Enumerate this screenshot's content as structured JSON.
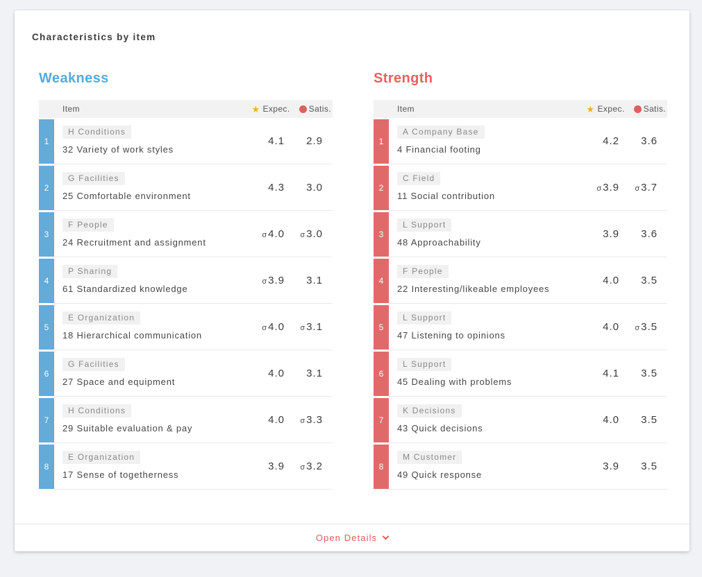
{
  "page": {
    "title": "Characteristics by item"
  },
  "sigma_symbol": "σ",
  "table_header": {
    "item_label": "Item",
    "expec_label": "Expec.",
    "satis_label": "Satis.",
    "expec_icon": "star-icon",
    "satis_icon": "dot-icon",
    "star_glyph": "★"
  },
  "colors": {
    "weakness_heading": "#55aadc",
    "weakness_badge": "#63abd8",
    "strength_heading": "#ec5f5f",
    "strength_badge": "#e06a6a",
    "star": "#f0b11e",
    "satis_dot": "#e05e5e",
    "details_link": "#e05c5c"
  },
  "weakness": {
    "heading": "Weakness",
    "rows": [
      {
        "rank": "1",
        "tag": "H Conditions",
        "label": "32 Variety of work styles",
        "expec": "4.1",
        "expec_sigma": false,
        "satis": "2.9",
        "satis_sigma": false
      },
      {
        "rank": "2",
        "tag": "G Facilities",
        "label": "25 Comfortable environment",
        "expec": "4.3",
        "expec_sigma": false,
        "satis": "3.0",
        "satis_sigma": false
      },
      {
        "rank": "3",
        "tag": "F People",
        "label": "24 Recruitment and assignment",
        "expec": "4.0",
        "expec_sigma": true,
        "satis": "3.0",
        "satis_sigma": true
      },
      {
        "rank": "4",
        "tag": "P Sharing",
        "label": "61 Standardized knowledge",
        "expec": "3.9",
        "expec_sigma": true,
        "satis": "3.1",
        "satis_sigma": false
      },
      {
        "rank": "5",
        "tag": "E Organization",
        "label": "18 Hierarchical communication",
        "expec": "4.0",
        "expec_sigma": true,
        "satis": "3.1",
        "satis_sigma": true
      },
      {
        "rank": "6",
        "tag": "G Facilities",
        "label": "27 Space and equipment",
        "expec": "4.0",
        "expec_sigma": false,
        "satis": "3.1",
        "satis_sigma": false
      },
      {
        "rank": "7",
        "tag": "H Conditions",
        "label": "29 Suitable evaluation & pay",
        "expec": "4.0",
        "expec_sigma": false,
        "satis": "3.3",
        "satis_sigma": true
      },
      {
        "rank": "8",
        "tag": "E Organization",
        "label": "17 Sense of togetherness",
        "expec": "3.9",
        "expec_sigma": false,
        "satis": "3.2",
        "satis_sigma": true
      }
    ]
  },
  "strength": {
    "heading": "Strength",
    "rows": [
      {
        "rank": "1",
        "tag": "A Company Base",
        "label": "4 Financial footing",
        "expec": "4.2",
        "expec_sigma": false,
        "satis": "3.6",
        "satis_sigma": false
      },
      {
        "rank": "2",
        "tag": "C Field",
        "label": "11 Social contribution",
        "expec": "3.9",
        "expec_sigma": true,
        "satis": "3.7",
        "satis_sigma": true
      },
      {
        "rank": "3",
        "tag": "L Support",
        "label": "48 Approachability",
        "expec": "3.9",
        "expec_sigma": false,
        "satis": "3.6",
        "satis_sigma": false
      },
      {
        "rank": "4",
        "tag": "F People",
        "label": "22 Interesting/likeable employees",
        "expec": "4.0",
        "expec_sigma": false,
        "satis": "3.5",
        "satis_sigma": false
      },
      {
        "rank": "5",
        "tag": "L Support",
        "label": "47 Listening to opinions",
        "expec": "4.0",
        "expec_sigma": false,
        "satis": "3.5",
        "satis_sigma": true
      },
      {
        "rank": "6",
        "tag": "L Support",
        "label": "45 Dealing with problems",
        "expec": "4.1",
        "expec_sigma": false,
        "satis": "3.5",
        "satis_sigma": false
      },
      {
        "rank": "7",
        "tag": "K Decisions",
        "label": "43 Quick decisions",
        "expec": "4.0",
        "expec_sigma": false,
        "satis": "3.5",
        "satis_sigma": false
      },
      {
        "rank": "8",
        "tag": "M Customer",
        "label": "49 Quick response",
        "expec": "3.9",
        "expec_sigma": false,
        "satis": "3.5",
        "satis_sigma": false
      }
    ]
  },
  "footer": {
    "open_details_label": "Open Details",
    "icon": "chevron-down-icon"
  }
}
